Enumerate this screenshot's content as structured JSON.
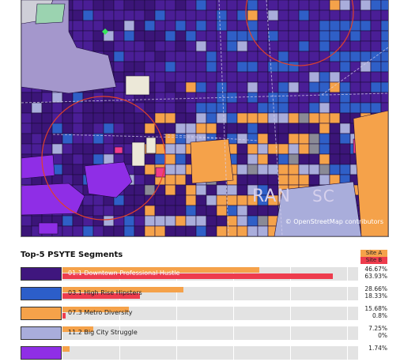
{
  "map": {
    "attribution": "© OpenStreetMap contributors",
    "words": [
      "RAN",
      "SC"
    ],
    "colors": {
      "bg": "#3a1a80",
      "purple": "#4a1e96",
      "deep": "#3b1578",
      "blue": "#2f5fc7",
      "orange": "#f5a24a",
      "lavender": "#a9addb",
      "violet": "#8f2ee6",
      "gray": "#8a8a96",
      "pale": "#ece8d8",
      "pink": "#f03c8a",
      "circle": "#e0402a"
    },
    "site_icon": "marker-icon"
  },
  "panel": {
    "title": "Top-5 PSYTE Segments",
    "legend": [
      {
        "label": "Site A",
        "color": "#f5a24a"
      },
      {
        "label": "Site B",
        "color": "#ee3c4d"
      }
    ],
    "segments": [
      {
        "label": "01.1 Downtown Professional Hustle",
        "color": "#3f167e",
        "dark": true,
        "site_a": "46.67%",
        "site_b": "63.93%",
        "a": 46.67,
        "b": 63.93
      },
      {
        "label": "03.1 High Rise Hipsters",
        "color": "#2c5ec9",
        "dark": false,
        "site_a": "28.66%",
        "site_b": "18.33%",
        "a": 28.66,
        "b": 18.33
      },
      {
        "label": "07.3 Metro Diversity",
        "color": "#f5a24a",
        "dark": false,
        "site_a": "15.68%",
        "site_b": "0.8%",
        "a": 15.68,
        "b": 0.8
      },
      {
        "label": "11.2 Big City Struggle",
        "color": "#a9addb",
        "dark": false,
        "site_a": "7.25%",
        "site_b": "0%",
        "a": 7.25,
        "b": 0
      },
      {
        "label": "",
        "color": "#8f2ee6",
        "dark": true,
        "site_a": "1.74%",
        "site_b": "",
        "a": 1.74,
        "b": 0
      }
    ]
  }
}
